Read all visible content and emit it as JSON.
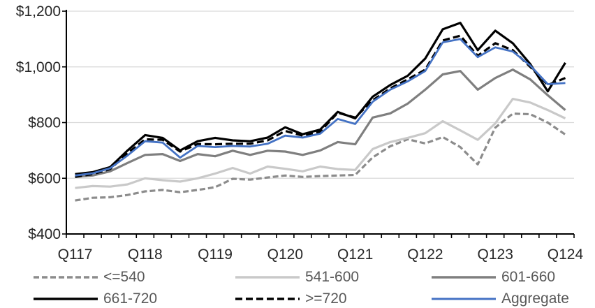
{
  "chart_data": {
    "type": "line",
    "title": "",
    "categories": [
      "Q1 2017",
      "Q2 2017",
      "Q3 2017",
      "Q4 2017",
      "Q1 2018",
      "Q2 2018",
      "Q3 2018",
      "Q4 2018",
      "Q1 2019",
      "Q2 2019",
      "Q3 2019",
      "Q4 2019",
      "Q1 2020",
      "Q2 2020",
      "Q3 2020",
      "Q4 2020",
      "Q1 2021",
      "Q2 2021",
      "Q3 2021",
      "Q4 2021",
      "Q1 2022",
      "Q2 2022",
      "Q3 2022",
      "Q4 2022",
      "Q1 2023",
      "Q2 2023",
      "Q3 2023",
      "Q4 2023",
      "Q1 2024"
    ],
    "x_tick_labels": [
      "Q117",
      "Q118",
      "Q119",
      "Q120",
      "Q121",
      "Q122",
      "Q123",
      "Q124"
    ],
    "x_tick_label_indices": [
      0,
      4,
      8,
      12,
      16,
      20,
      24,
      28
    ],
    "y_axis": {
      "min": 400,
      "max": 1200,
      "step": 200,
      "tick_labels": [
        "$400",
        "$600",
        "$800",
        "$1,000",
        "$1,200"
      ]
    },
    "grid": "horizontal",
    "legend_position": "bottom",
    "series": [
      {
        "id": "le-540",
        "name": "<=540",
        "color": "#8C8C8C",
        "dash": "8 4",
        "width": 3.2,
        "values": [
          520,
          530,
          532,
          540,
          553,
          558,
          550,
          558,
          568,
          598,
          595,
          603,
          610,
          605,
          608,
          610,
          612,
          675,
          715,
          740,
          725,
          748,
          712,
          650,
          782,
          832,
          830,
          800,
          757
        ]
      },
      {
        "id": "s541-600",
        "name": "541-600",
        "color": "#C9C9C9",
        "dash": null,
        "width": 3.2,
        "values": [
          565,
          572,
          570,
          578,
          600,
          593,
          588,
          600,
          617,
          637,
          617,
          642,
          634,
          625,
          642,
          633,
          630,
          705,
          730,
          745,
          762,
          805,
          772,
          738,
          797,
          885,
          872,
          845,
          815
        ]
      },
      {
        "id": "s601-660",
        "name": "601-660",
        "color": "#7F7F7F",
        "dash": null,
        "width": 3.2,
        "values": [
          605,
          610,
          625,
          655,
          684,
          687,
          662,
          687,
          679,
          699,
          684,
          699,
          696,
          684,
          700,
          730,
          722,
          818,
          833,
          868,
          918,
          973,
          985,
          918,
          960,
          990,
          955,
          898,
          845
        ]
      },
      {
        "id": "s661-720",
        "name": "661-720",
        "color": "#000000",
        "dash": null,
        "width": 3.2,
        "values": [
          615,
          622,
          640,
          700,
          755,
          745,
          700,
          733,
          745,
          736,
          733,
          746,
          783,
          758,
          775,
          838,
          815,
          893,
          935,
          968,
          1030,
          1135,
          1158,
          1060,
          1130,
          1085,
          1010,
          912,
          1015
        ]
      },
      {
        "id": "ge-720",
        "name": ">=720",
        "color": "#000000",
        "dash": "10 5",
        "width": 3.2,
        "values": [
          605,
          615,
          633,
          690,
          740,
          738,
          696,
          723,
          722,
          724,
          724,
          736,
          770,
          753,
          768,
          835,
          818,
          880,
          923,
          955,
          990,
          1095,
          1112,
          1040,
          1085,
          1060,
          1000,
          935,
          960
        ]
      },
      {
        "id": "aggregate",
        "name": "Aggregate",
        "color": "#4472C4",
        "dash": null,
        "width": 2.8,
        "values": [
          610,
          618,
          636,
          682,
          733,
          728,
          674,
          716,
          712,
          716,
          714,
          724,
          753,
          746,
          760,
          813,
          795,
          875,
          918,
          948,
          985,
          1088,
          1100,
          1035,
          1070,
          1055,
          1005,
          938,
          942
        ]
      }
    ]
  },
  "colors": {
    "gridline": "#D9D9D9",
    "axis": "#000000",
    "axis_label": "#262626",
    "legend_label": "#595959",
    "background": "#FFFFFF"
  }
}
